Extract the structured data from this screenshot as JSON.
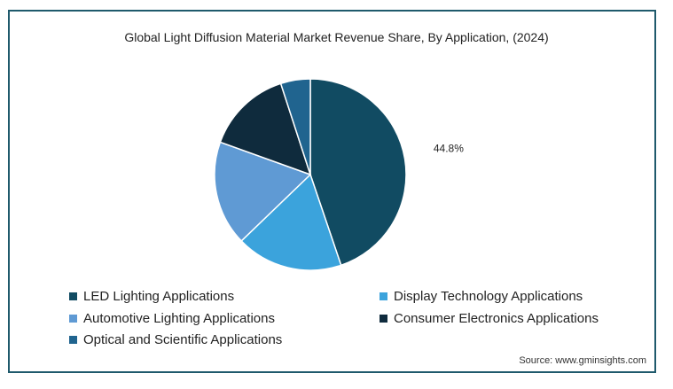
{
  "chart_data": {
    "type": "pie",
    "title": "Global Light Diffusion Material Market Revenue Share, By Application, (2024)",
    "slices": [
      {
        "label": "LED Lighting Applications",
        "value": 44.8,
        "color": "#114b62",
        "data_label": "44.8%"
      },
      {
        "label": "Display Technology Applications",
        "value": 18.0,
        "color": "#3ba3dc",
        "data_label": ""
      },
      {
        "label": "Automotive Lighting Applications",
        "value": 17.7,
        "color": "#5f9ad4",
        "data_label": ""
      },
      {
        "label": "Consumer Electronics Applications",
        "value": 14.5,
        "color": "#0f2b3d",
        "data_label": ""
      },
      {
        "label": "Optical and Scientific Applications",
        "value": 5.0,
        "color": "#20648f",
        "data_label": ""
      }
    ],
    "start_angle_deg": 0,
    "direction": "clockwise",
    "legend_position": "bottom"
  },
  "source": "Source: www.gminsights.com"
}
